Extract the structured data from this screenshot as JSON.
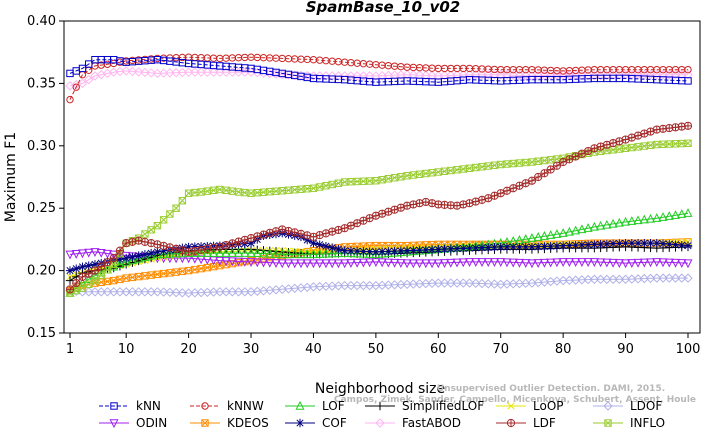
{
  "chart_data": {
    "type": "line",
    "title": "SpamBase_10_v02",
    "xlabel": "Neighborhood size",
    "ylabel": "Maximum F1",
    "xlim": [
      1,
      100
    ],
    "ylim": [
      0.15,
      0.4
    ],
    "xticks": [
      1,
      10,
      20,
      30,
      40,
      50,
      60,
      70,
      80,
      90,
      100
    ],
    "yticks": [
      "0.15",
      "0.20",
      "0.25",
      "0.30",
      "0.35",
      "0.40"
    ],
    "watermark": [
      "Unsupervised Outlier Detection. DAMI, 2015.",
      "Campos, Zimek, Sander, Campello, Micenkova, Schubert, Assent, Houle"
    ],
    "legend_position": "bottom",
    "series": [
      {
        "name": "kNN",
        "color": "#0000cc",
        "marker": "square",
        "dashed": true,
        "x": [
          1,
          3,
          5,
          8,
          10,
          15,
          20,
          25,
          30,
          35,
          40,
          45,
          50,
          55,
          60,
          65,
          70,
          75,
          80,
          85,
          90,
          95,
          100
        ],
        "y": [
          0.358,
          0.362,
          0.369,
          0.369,
          0.367,
          0.369,
          0.366,
          0.364,
          0.362,
          0.358,
          0.354,
          0.353,
          0.351,
          0.352,
          0.351,
          0.353,
          0.352,
          0.353,
          0.353,
          0.354,
          0.354,
          0.353,
          0.352
        ]
      },
      {
        "name": "kNNW",
        "color": "#cc2222",
        "marker": "circle",
        "dashed": true,
        "x": [
          1,
          3,
          5,
          8,
          10,
          15,
          20,
          25,
          30,
          35,
          40,
          45,
          50,
          55,
          60,
          65,
          70,
          75,
          80,
          85,
          90,
          95,
          100
        ],
        "y": [
          0.337,
          0.357,
          0.364,
          0.366,
          0.368,
          0.37,
          0.371,
          0.37,
          0.371,
          0.37,
          0.369,
          0.367,
          0.365,
          0.363,
          0.362,
          0.362,
          0.361,
          0.361,
          0.36,
          0.361,
          0.361,
          0.361,
          0.361
        ]
      },
      {
        "name": "LOF",
        "color": "#22cc22",
        "marker": "triangle",
        "dashed": false,
        "x": [
          1,
          3,
          5,
          8,
          10,
          15,
          20,
          25,
          30,
          35,
          40,
          45,
          50,
          55,
          60,
          65,
          70,
          75,
          80,
          85,
          90,
          95,
          100
        ],
        "y": [
          0.182,
          0.19,
          0.196,
          0.203,
          0.207,
          0.213,
          0.214,
          0.214,
          0.214,
          0.213,
          0.213,
          0.214,
          0.213,
          0.215,
          0.217,
          0.219,
          0.222,
          0.226,
          0.23,
          0.235,
          0.239,
          0.242,
          0.246
        ]
      },
      {
        "name": "SimplifiedLOF",
        "color": "#000000",
        "marker": "plus",
        "dashed": false,
        "x": [
          1,
          3,
          5,
          8,
          10,
          15,
          20,
          25,
          30,
          35,
          40,
          45,
          50,
          55,
          60,
          65,
          70,
          75,
          80,
          85,
          90,
          95,
          100
        ],
        "y": [
          0.192,
          0.198,
          0.2,
          0.202,
          0.205,
          0.212,
          0.216,
          0.217,
          0.217,
          0.215,
          0.213,
          0.214,
          0.213,
          0.214,
          0.215,
          0.216,
          0.217,
          0.217,
          0.218,
          0.218,
          0.219,
          0.218,
          0.219
        ]
      },
      {
        "name": "LoOP",
        "color": "#e6e600",
        "marker": "x",
        "dashed": false,
        "x": [
          1,
          3,
          5,
          8,
          10,
          15,
          20,
          25,
          30,
          35,
          40,
          45,
          50,
          55,
          60,
          65,
          70,
          75,
          80,
          85,
          90,
          95,
          100
        ],
        "y": [
          0.195,
          0.199,
          0.201,
          0.203,
          0.205,
          0.21,
          0.214,
          0.215,
          0.216,
          0.216,
          0.215,
          0.216,
          0.217,
          0.218,
          0.218,
          0.219,
          0.22,
          0.22,
          0.221,
          0.221,
          0.222,
          0.222,
          0.223
        ]
      },
      {
        "name": "LDOF",
        "color": "#b0b0e8",
        "marker": "diamond",
        "dashed": false,
        "x": [
          1,
          3,
          5,
          8,
          10,
          15,
          20,
          25,
          30,
          35,
          40,
          45,
          50,
          55,
          60,
          65,
          70,
          75,
          80,
          85,
          90,
          95,
          100
        ],
        "y": [
          0.184,
          0.183,
          0.183,
          0.183,
          0.183,
          0.183,
          0.182,
          0.183,
          0.183,
          0.185,
          0.187,
          0.188,
          0.188,
          0.189,
          0.19,
          0.19,
          0.189,
          0.19,
          0.192,
          0.193,
          0.193,
          0.194,
          0.194
        ]
      },
      {
        "name": "ODIN",
        "color": "#a020f0",
        "marker": "triangle-down",
        "dashed": false,
        "x": [
          1,
          3,
          5,
          8,
          10,
          15,
          20,
          25,
          30,
          35,
          40,
          45,
          50,
          55,
          60,
          65,
          70,
          75,
          80,
          85,
          90,
          95,
          100
        ],
        "y": [
          0.213,
          0.214,
          0.215,
          0.213,
          0.212,
          0.21,
          0.21,
          0.208,
          0.207,
          0.206,
          0.206,
          0.206,
          0.207,
          0.206,
          0.206,
          0.207,
          0.207,
          0.206,
          0.207,
          0.207,
          0.206,
          0.207,
          0.206
        ]
      },
      {
        "name": "KDEOS",
        "color": "#ff8c00",
        "marker": "square-cross",
        "dashed": false,
        "x": [
          1,
          3,
          5,
          8,
          10,
          15,
          20,
          25,
          30,
          35,
          40,
          45,
          50,
          55,
          60,
          65,
          70,
          75,
          80,
          85,
          90,
          95,
          100
        ],
        "y": [
          0.184,
          0.188,
          0.19,
          0.192,
          0.194,
          0.197,
          0.2,
          0.204,
          0.208,
          0.212,
          0.216,
          0.219,
          0.22,
          0.22,
          0.221,
          0.221,
          0.221,
          0.221,
          0.221,
          0.222,
          0.222,
          0.222,
          0.223
        ]
      },
      {
        "name": "COF",
        "color": "#000080",
        "marker": "star",
        "dashed": false,
        "x": [
          1,
          3,
          5,
          8,
          10,
          15,
          20,
          25,
          30,
          32,
          35,
          38,
          40,
          45,
          50,
          55,
          60,
          65,
          70,
          75,
          80,
          85,
          90,
          95,
          100
        ],
        "y": [
          0.2,
          0.203,
          0.205,
          0.208,
          0.21,
          0.215,
          0.219,
          0.22,
          0.222,
          0.228,
          0.23,
          0.227,
          0.222,
          0.216,
          0.215,
          0.216,
          0.217,
          0.218,
          0.219,
          0.219,
          0.22,
          0.221,
          0.222,
          0.222,
          0.22
        ]
      },
      {
        "name": "FastABOD",
        "color": "#ffb6f0",
        "marker": "diamond",
        "dashed": false,
        "x": [
          1,
          3,
          5,
          8,
          10,
          15,
          20,
          25,
          30,
          35,
          40,
          45,
          50,
          55,
          60,
          65,
          70,
          75,
          80,
          85,
          90,
          95,
          100
        ],
        "y": [
          0.348,
          0.35,
          0.356,
          0.359,
          0.36,
          0.358,
          0.359,
          0.359,
          0.359,
          0.357,
          0.356,
          0.356,
          0.356,
          0.357,
          0.356,
          0.357,
          0.357,
          0.356,
          0.357,
          0.356,
          0.357,
          0.357,
          0.357
        ]
      },
      {
        "name": "LDF",
        "color": "#a52a2a",
        "marker": "circle-plus",
        "dashed": false,
        "x": [
          1,
          3,
          5,
          8,
          10,
          12,
          15,
          20,
          25,
          30,
          35,
          40,
          45,
          50,
          55,
          58,
          60,
          63,
          65,
          68,
          70,
          75,
          80,
          85,
          90,
          95,
          100
        ],
        "y": [
          0.185,
          0.195,
          0.2,
          0.21,
          0.222,
          0.224,
          0.221,
          0.215,
          0.219,
          0.226,
          0.233,
          0.227,
          0.234,
          0.244,
          0.252,
          0.255,
          0.253,
          0.252,
          0.254,
          0.258,
          0.262,
          0.272,
          0.287,
          0.298,
          0.305,
          0.313,
          0.316
        ]
      },
      {
        "name": "INFLO",
        "color": "#9acd32",
        "marker": "hourglass",
        "dashed": false,
        "x": [
          1,
          3,
          5,
          8,
          10,
          12,
          15,
          18,
          20,
          22,
          25,
          28,
          30,
          35,
          40,
          45,
          50,
          55,
          60,
          65,
          70,
          75,
          80,
          85,
          90,
          95,
          100
        ],
        "y": [
          0.182,
          0.186,
          0.192,
          0.205,
          0.222,
          0.226,
          0.236,
          0.25,
          0.262,
          0.263,
          0.265,
          0.263,
          0.262,
          0.264,
          0.266,
          0.271,
          0.272,
          0.276,
          0.279,
          0.282,
          0.285,
          0.287,
          0.29,
          0.295,
          0.298,
          0.301,
          0.302
        ]
      }
    ]
  }
}
